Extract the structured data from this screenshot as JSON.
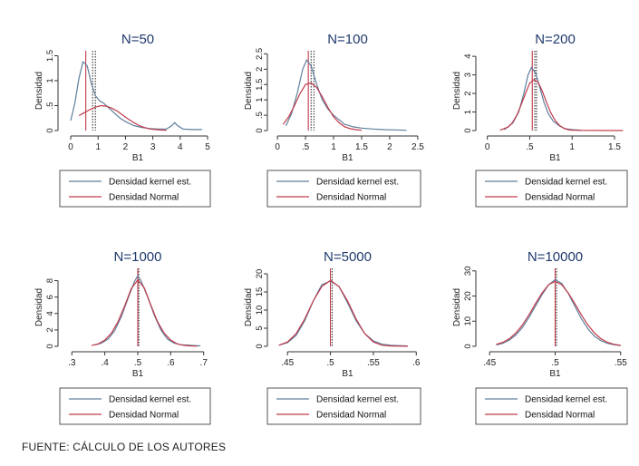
{
  "source": "FUENTE: CÁLCULO DE LOS AUTORES",
  "legend": {
    "kernel": "Densidad kernel est.",
    "normal": "Densidad Normal"
  },
  "colors": {
    "kernel": "#5f7f9c",
    "normal": "#c03a4a",
    "title": "#1f3a6d",
    "axis": "#333333",
    "vline": "#333333"
  },
  "chart_data": [
    {
      "type": "line",
      "title": "N=50",
      "xlabel": "B1",
      "ylabel": "Densidad",
      "xlim": [
        -0.2,
        5.1
      ],
      "ylim": [
        0,
        1.6
      ],
      "xticks": [
        0,
        1,
        2,
        3,
        4,
        5
      ],
      "xtick_labels": [
        "0",
        "1",
        "2",
        "3",
        "4",
        "5"
      ],
      "yticks": [
        0,
        0.5,
        1,
        1.5
      ],
      "ytick_labels": [
        "0",
        ".5",
        "1",
        "1.5"
      ],
      "vlines": [
        {
          "x": 0.55,
          "style": "solid"
        },
        {
          "x": 0.8,
          "style": "dotted"
        },
        {
          "x": 0.9,
          "style": "dotted"
        }
      ],
      "series": [
        {
          "name": "Densidad kernel est.",
          "x": [
            0,
            0.15,
            0.3,
            0.45,
            0.6,
            0.75,
            0.9,
            1.05,
            1.2,
            1.4,
            1.6,
            1.8,
            2.0,
            2.3,
            2.6,
            2.9,
            3.2,
            3.5,
            3.7,
            3.8,
            3.9,
            4.1,
            4.4,
            4.7,
            4.8
          ],
          "y": [
            0.2,
            0.55,
            1.05,
            1.38,
            1.3,
            0.95,
            0.7,
            0.6,
            0.55,
            0.45,
            0.35,
            0.25,
            0.18,
            0.1,
            0.06,
            0.04,
            0.03,
            0.03,
            0.1,
            0.16,
            0.1,
            0.03,
            0.02,
            0.02,
            0.02
          ]
        },
        {
          "name": "Densidad Normal",
          "x": [
            0.3,
            0.5,
            0.7,
            0.9,
            1.1,
            1.3,
            1.5,
            1.7,
            1.9,
            2.1,
            2.3,
            2.5,
            2.7,
            2.9,
            3.1,
            3.3,
            3.5
          ],
          "y": [
            0.3,
            0.36,
            0.42,
            0.47,
            0.5,
            0.49,
            0.45,
            0.39,
            0.31,
            0.23,
            0.16,
            0.1,
            0.06,
            0.03,
            0.02,
            0.01,
            0.005
          ]
        }
      ]
    },
    {
      "type": "line",
      "title": "N=100",
      "xlabel": "B1",
      "ylabel": "Densidad",
      "xlim": [
        -0.05,
        2.55
      ],
      "ylim": [
        0,
        2.6
      ],
      "xticks": [
        0,
        0.5,
        1,
        1.5,
        2,
        2.5
      ],
      "xtick_labels": [
        "0",
        ".5",
        "1",
        "1.5",
        "2",
        "2.5"
      ],
      "yticks": [
        0,
        0.5,
        1,
        1.5,
        2,
        2.5
      ],
      "ytick_labels": [
        "0",
        ".5",
        "1",
        "1.5",
        "2",
        "2.5"
      ],
      "vlines": [
        {
          "x": 0.55,
          "style": "solid"
        },
        {
          "x": 0.6,
          "style": "dotted"
        },
        {
          "x": 0.65,
          "style": "dotted"
        }
      ],
      "series": [
        {
          "name": "Densidad kernel est.",
          "x": [
            0.15,
            0.25,
            0.35,
            0.45,
            0.52,
            0.6,
            0.7,
            0.8,
            0.9,
            1.0,
            1.1,
            1.2,
            1.35,
            1.5,
            1.7,
            1.9,
            2.1,
            2.3
          ],
          "y": [
            0.15,
            0.55,
            1.2,
            2.0,
            2.3,
            2.1,
            1.5,
            1.0,
            0.7,
            0.5,
            0.35,
            0.2,
            0.12,
            0.08,
            0.05,
            0.03,
            0.02,
            0.01
          ]
        },
        {
          "name": "Densidad Normal",
          "x": [
            0.1,
            0.2,
            0.3,
            0.4,
            0.5,
            0.6,
            0.7,
            0.8,
            0.9,
            1.0,
            1.1,
            1.2,
            1.3,
            1.4,
            1.5
          ],
          "y": [
            0.2,
            0.45,
            0.8,
            1.2,
            1.5,
            1.55,
            1.4,
            1.1,
            0.75,
            0.45,
            0.25,
            0.12,
            0.06,
            0.03,
            0.01
          ]
        }
      ]
    },
    {
      "type": "line",
      "title": "N=200",
      "xlabel": "B1",
      "ylabel": "Densidad",
      "xlim": [
        -0.05,
        1.65
      ],
      "ylim": [
        0,
        4.3
      ],
      "xticks": [
        0,
        0.5,
        1,
        1.5
      ],
      "xtick_labels": [
        "0",
        ".5",
        "1",
        "1.5"
      ],
      "yticks": [
        0,
        1,
        2,
        3,
        4
      ],
      "ytick_labels": [
        "0",
        "1",
        "2",
        "3",
        "4"
      ],
      "vlines": [
        {
          "x": 0.53,
          "style": "solid"
        },
        {
          "x": 0.56,
          "style": "dotted"
        },
        {
          "x": 0.58,
          "style": "dotted"
        }
      ],
      "series": [
        {
          "name": "Densidad kernel est.",
          "x": [
            0.2,
            0.3,
            0.37,
            0.43,
            0.48,
            0.52,
            0.57,
            0.62,
            0.67,
            0.72,
            0.78,
            0.85,
            0.92,
            1.0,
            1.1
          ],
          "y": [
            0.05,
            0.4,
            1.0,
            2.0,
            3.0,
            3.4,
            3.1,
            2.3,
            1.5,
            0.9,
            0.5,
            0.25,
            0.1,
            0.05,
            0.02
          ]
        },
        {
          "name": "Densidad Normal",
          "x": [
            0.15,
            0.25,
            0.3,
            0.35,
            0.4,
            0.45,
            0.5,
            0.55,
            0.6,
            0.65,
            0.7,
            0.75,
            0.8,
            0.85,
            0.9,
            0.95,
            1.0,
            1.1,
            1.6
          ],
          "y": [
            0.02,
            0.2,
            0.45,
            0.85,
            1.4,
            2.0,
            2.55,
            2.75,
            2.6,
            2.1,
            1.5,
            0.95,
            0.55,
            0.28,
            0.12,
            0.05,
            0.02,
            0.01,
            0.0
          ]
        }
      ]
    },
    {
      "type": "line",
      "title": "N=1000",
      "xlabel": "B1",
      "ylabel": "Densidad",
      "xlim": [
        0.28,
        0.72
      ],
      "ylim": [
        0,
        9.5
      ],
      "xticks": [
        0.3,
        0.4,
        0.5,
        0.6,
        0.7
      ],
      "xtick_labels": [
        ".3",
        ".4",
        ".5",
        ".6",
        ".7"
      ],
      "yticks": [
        0,
        2,
        4,
        6,
        8
      ],
      "ytick_labels": [
        "0",
        "2",
        "4",
        "6",
        "8"
      ],
      "vlines": [
        {
          "x": 0.5,
          "style": "solid"
        },
        {
          "x": 0.503,
          "style": "dotted"
        }
      ],
      "series": [
        {
          "name": "Densidad kernel est.",
          "x": [
            0.37,
            0.39,
            0.41,
            0.43,
            0.45,
            0.47,
            0.49,
            0.5,
            0.51,
            0.53,
            0.55,
            0.57,
            0.59,
            0.61,
            0.63,
            0.65,
            0.67,
            0.69
          ],
          "y": [
            0.15,
            0.4,
            0.9,
            1.9,
            3.6,
            5.8,
            7.9,
            8.6,
            8.0,
            6.0,
            3.8,
            2.0,
            0.9,
            0.4,
            0.2,
            0.15,
            0.1,
            0.05
          ]
        },
        {
          "name": "Densidad Normal",
          "x": [
            0.36,
            0.38,
            0.4,
            0.42,
            0.44,
            0.46,
            0.48,
            0.5,
            0.52,
            0.54,
            0.56,
            0.58,
            0.6,
            0.62,
            0.64,
            0.66,
            0.68
          ],
          "y": [
            0.1,
            0.3,
            0.75,
            1.6,
            3.0,
            4.9,
            7.0,
            8.1,
            7.1,
            5.0,
            3.0,
            1.6,
            0.75,
            0.3,
            0.12,
            0.05,
            0.02
          ]
        }
      ]
    },
    {
      "type": "line",
      "title": "N=5000",
      "xlabel": "B1",
      "ylabel": "Densidad",
      "xlim": [
        0.435,
        0.605
      ],
      "ylim": [
        0,
        21.5
      ],
      "xticks": [
        0.45,
        0.5,
        0.55,
        0.6
      ],
      "xtick_labels": [
        ".45",
        ".5",
        ".55",
        ".6"
      ],
      "yticks": [
        0,
        5,
        10,
        15,
        20
      ],
      "ytick_labels": [
        "0",
        "5",
        "10",
        "15",
        "20"
      ],
      "vlines": [
        {
          "x": 0.5,
          "style": "solid"
        },
        {
          "x": 0.502,
          "style": "dotted"
        }
      ],
      "series": [
        {
          "name": "Densidad kernel est.",
          "x": [
            0.44,
            0.45,
            0.46,
            0.47,
            0.48,
            0.49,
            0.5,
            0.51,
            0.52,
            0.53,
            0.54,
            0.55,
            0.56,
            0.57,
            0.58,
            0.59
          ],
          "y": [
            0.3,
            1.0,
            3.0,
            7.0,
            12.5,
            17.0,
            18.0,
            16.5,
            12.0,
            7.0,
            3.5,
            1.5,
            0.6,
            0.3,
            0.2,
            0.1
          ]
        },
        {
          "name": "Densidad Normal",
          "x": [
            0.44,
            0.45,
            0.46,
            0.47,
            0.48,
            0.49,
            0.5,
            0.51,
            0.52,
            0.53,
            0.54,
            0.55,
            0.56,
            0.57,
            0.58,
            0.59
          ],
          "y": [
            0.3,
            1.2,
            3.5,
            7.5,
            12.5,
            16.5,
            18.2,
            16.5,
            12.5,
            7.5,
            3.5,
            1.2,
            0.3,
            0.1,
            0.05,
            0.02
          ]
        }
      ]
    },
    {
      "type": "line",
      "title": "N=10000",
      "xlabel": "B1",
      "ylabel": "Densidad",
      "xlim": [
        0.445,
        0.555
      ],
      "ylim": [
        0,
        31
      ],
      "xticks": [
        0.45,
        0.5,
        0.55
      ],
      "xtick_labels": [
        ".45",
        ".5",
        ".55"
      ],
      "yticks": [
        0,
        10,
        20,
        30
      ],
      "ytick_labels": [
        "0",
        "10",
        "20",
        "30"
      ],
      "vlines": [
        {
          "x": 0.5,
          "style": "solid"
        },
        {
          "x": 0.501,
          "style": "dotted"
        }
      ],
      "series": [
        {
          "name": "Densidad kernel est.",
          "x": [
            0.455,
            0.46,
            0.465,
            0.47,
            0.475,
            0.48,
            0.485,
            0.49,
            0.495,
            0.5,
            0.505,
            0.51,
            0.515,
            0.52,
            0.525,
            0.53,
            0.535,
            0.54,
            0.545,
            0.55
          ],
          "y": [
            0.5,
            1.2,
            2.5,
            4.5,
            7.5,
            11.5,
            16.0,
            20.5,
            24.5,
            26.5,
            25.0,
            21.0,
            16.0,
            11.0,
            7.0,
            4.0,
            2.2,
            1.2,
            0.6,
            0.3
          ]
        },
        {
          "name": "Densidad Normal",
          "x": [
            0.455,
            0.46,
            0.465,
            0.47,
            0.475,
            0.48,
            0.485,
            0.49,
            0.495,
            0.5,
            0.505,
            0.51,
            0.515,
            0.52,
            0.525,
            0.53,
            0.535,
            0.54,
            0.545,
            0.55
          ],
          "y": [
            0.8,
            1.6,
            3.0,
            5.3,
            8.5,
            12.5,
            17.0,
            21.2,
            24.5,
            25.8,
            24.5,
            21.2,
            17.0,
            12.5,
            8.5,
            5.3,
            3.0,
            1.6,
            0.8,
            0.35
          ]
        }
      ]
    }
  ]
}
